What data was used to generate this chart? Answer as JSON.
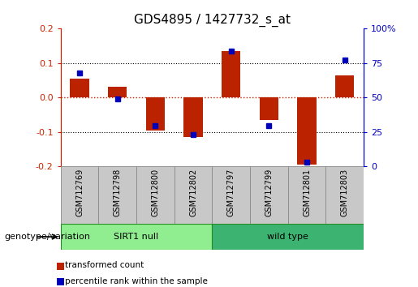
{
  "title": "GDS4895 / 1427732_s_at",
  "samples": [
    "GSM712769",
    "GSM712798",
    "GSM712800",
    "GSM712802",
    "GSM712797",
    "GSM712799",
    "GSM712801",
    "GSM712803"
  ],
  "red_bars": [
    0.055,
    0.032,
    -0.095,
    -0.115,
    0.135,
    -0.065,
    -0.195,
    0.065
  ],
  "blue_squares_left": [
    0.072,
    -0.005,
    -0.082,
    -0.108,
    0.135,
    -0.082,
    -0.188,
    0.11
  ],
  "ylim_left": [
    -0.2,
    0.2
  ],
  "ylim_right": [
    0,
    100
  ],
  "yticks_left": [
    -0.2,
    -0.1,
    0.0,
    0.1,
    0.2
  ],
  "yticks_right": [
    0,
    25,
    50,
    75,
    100
  ],
  "groups": [
    {
      "label": "SIRT1 null",
      "count": 4,
      "color": "#90EE90",
      "dark_color": "#228B22"
    },
    {
      "label": "wild type",
      "count": 4,
      "color": "#3CB371",
      "dark_color": "#228B22"
    }
  ],
  "genotype_label": "genotype/variation",
  "legend_red": "transformed count",
  "legend_blue": "percentile rank within the sample",
  "bar_color": "#BB2200",
  "square_color": "#0000BB",
  "red_axis_color": "#CC2200",
  "blue_axis_color": "#0000CC",
  "bar_width": 0.5,
  "grid_color": "black",
  "zero_line_color": "#CC2200",
  "bg_color": "white",
  "plot_bg": "white",
  "tick_label_fontsize": 8,
  "title_fontsize": 11,
  "box_facecolor": "#C8C8C8",
  "box_edgecolor": "#888888"
}
